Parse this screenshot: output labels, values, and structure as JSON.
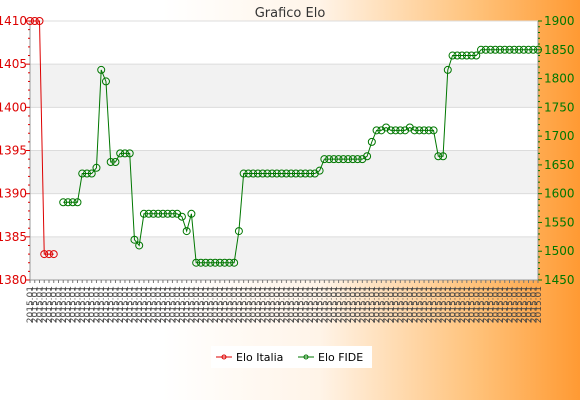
{
  "chart_data": {
    "type": "line",
    "title": "Grafico Elo",
    "xlabel": "",
    "ylabel": "",
    "left_axis": {
      "ylim": [
        1380,
        1410
      ],
      "ticks": [
        1380,
        1385,
        1390,
        1395,
        1400,
        1405,
        1410
      ],
      "color": "#dd0000"
    },
    "right_axis": {
      "ylim": [
        1450,
        1900
      ],
      "ticks": [
        1450,
        1500,
        1550,
        1600,
        1650,
        1700,
        1750,
        1800,
        1850,
        1900
      ],
      "color": "#007700"
    },
    "grid": true,
    "legend_position": "bottom-center",
    "x_tick_label_pattern": "2015.01",
    "series": [
      {
        "name": "Elo Italia",
        "axis": "left",
        "color": "#dd0000",
        "values": [
          1410,
          1410,
          1410,
          1383,
          1383,
          1383
        ]
      },
      {
        "name": "Elo FIDE",
        "axis": "right",
        "color": "#007700",
        "start_index": 7,
        "values": [
          1585,
          1585,
          1585,
          1585,
          1635,
          1635,
          1635,
          1645,
          1815,
          1795,
          1655,
          1655,
          1670,
          1670,
          1670,
          1520,
          1510,
          1565,
          1565,
          1565,
          1565,
          1565,
          1565,
          1565,
          1565,
          1560,
          1535,
          1565,
          1480,
          1480,
          1480,
          1480,
          1480,
          1480,
          1480,
          1480,
          1480,
          1535,
          1635,
          1635,
          1635,
          1635,
          1635,
          1635,
          1635,
          1635,
          1635,
          1635,
          1635,
          1635,
          1635,
          1635,
          1635,
          1635,
          1640,
          1660,
          1660,
          1660,
          1660,
          1660,
          1660,
          1660,
          1660,
          1660,
          1665,
          1690,
          1710,
          1710,
          1715,
          1710,
          1710,
          1710,
          1710,
          1715,
          1710,
          1710,
          1710,
          1710,
          1710,
          1665,
          1665,
          1815,
          1840,
          1840,
          1840,
          1840,
          1840,
          1840,
          1850,
          1850,
          1850,
          1850,
          1850,
          1850,
          1850,
          1850,
          1850,
          1850,
          1850,
          1850,
          1850
        ]
      }
    ]
  }
}
